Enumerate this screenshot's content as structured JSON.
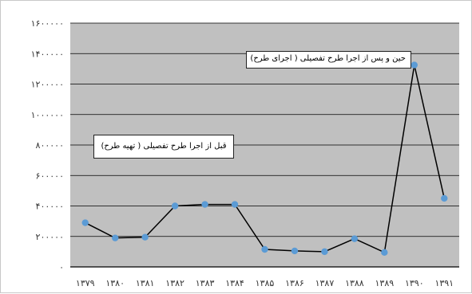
{
  "chart_data": {
    "type": "line",
    "x": [
      "۱۳۷۹",
      "۱۳۸۰",
      "۱۳۸۱",
      "۱۳۸۲",
      "۱۳۸۳",
      "۱۳۸۴",
      "۱۳۸۵",
      "۱۳۸۶",
      "۱۳۸۷",
      "۱۳۸۸",
      "۱۳۸۹",
      "۱۳۹۰",
      "۱۳۹۱"
    ],
    "series": [
      {
        "values": [
          290000,
          190000,
          195000,
          400000,
          410000,
          410000,
          115000,
          105000,
          100000,
          185000,
          95000,
          1325000,
          450000
        ]
      }
    ],
    "ylim": [
      0,
      1600000
    ],
    "y_ticks": [
      0,
      200000,
      400000,
      600000,
      800000,
      1000000,
      1200000,
      1400000,
      1600000
    ],
    "y_tick_labels": [
      "۰",
      "۲۰۰۰۰۰",
      "۴۰۰۰۰۰",
      "۶۰۰۰۰۰",
      "۸۰۰۰۰۰",
      "۱۰۰۰۰۰۰",
      "۱۲۰۰۰۰۰",
      "۱۴۰۰۰۰۰",
      "۱۶۰۰۰۰۰"
    ],
    "grid": true,
    "colors": {
      "line": "#000000",
      "marker": "#5b9bd5",
      "plot_background": "#c0c0c0",
      "gridline": "#000000"
    },
    "annotations": [
      {
        "id": "after",
        "text": "حین و پس از اجرا طرح تفصیلی ( اجرای طرح)"
      },
      {
        "id": "before",
        "text": "قبل از اجرا طرح تفصیلی ( تهیه طرح)"
      }
    ]
  }
}
